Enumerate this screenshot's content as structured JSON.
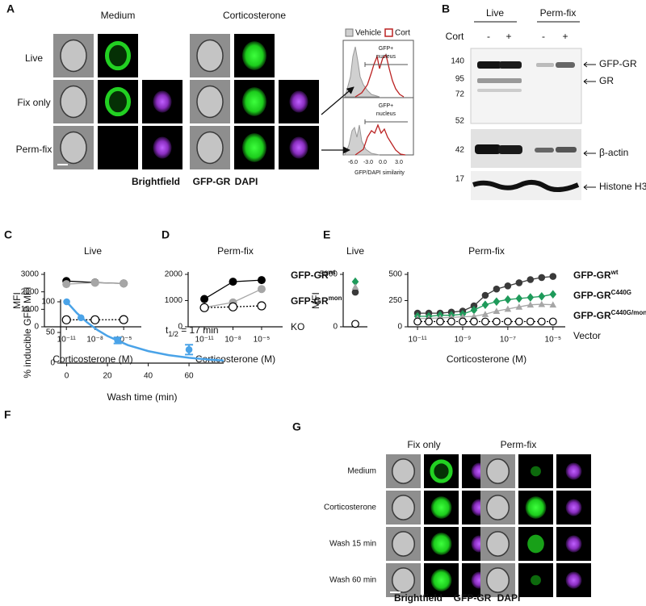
{
  "panels": {
    "A": {
      "label": "A",
      "columns": [
        "Medium",
        "Corticosterone"
      ],
      "rows": [
        "Live",
        "Fix only",
        "Perm-fix"
      ],
      "channels": [
        "Brightfield",
        "GFP-GR",
        "DAPI"
      ],
      "histogram": {
        "legend": [
          "Vehicle",
          "Cort"
        ],
        "gates": [
          [
            "GFP+",
            "nucleus"
          ],
          [
            "GFP+",
            "nucleus"
          ]
        ],
        "xticks": [
          "-6.0",
          "-3.0",
          "0.0",
          "3.0"
        ],
        "xlabel": "GFP/DAPI similarity"
      }
    },
    "B": {
      "label": "B",
      "groups": [
        "Live",
        "Perm-fix"
      ],
      "treatment": "Cort",
      "lanes": [
        "-",
        "+",
        "-",
        "+"
      ],
      "markers": [
        140,
        95,
        72,
        52,
        42,
        17
      ],
      "bands": [
        "GFP-GR",
        "GR",
        "β-actin",
        "Histone H3"
      ]
    },
    "G": {
      "label": "G",
      "columns": [
        "Fix only",
        "Perm-fix"
      ],
      "rows": [
        "Medium",
        "Corticosterone",
        "Wash 15 min",
        "Wash 60 min"
      ],
      "channels": [
        "Brightfield",
        "GFP-GR",
        "DAPI"
      ]
    }
  },
  "chart_data": [
    {
      "panel": "C",
      "type": "line",
      "title": "Live",
      "ylabel": "MFI",
      "xlabel": "Corticosterone (M)",
      "log_x": true,
      "x": [
        1e-11,
        1e-08,
        1e-05
      ],
      "xlim": [
        5e-14,
        0.0007
      ],
      "xticks": [
        {
          "value": 1e-11,
          "label": "10⁻¹¹"
        },
        {
          "value": 1e-08,
          "label": "10⁻⁸"
        },
        {
          "value": 1e-05,
          "label": "10⁻⁵"
        }
      ],
      "ylim": [
        0,
        3000
      ],
      "yticks": [
        0,
        1000,
        2000,
        3000
      ],
      "series": [
        {
          "color": "#000000",
          "marker": "circle",
          "values": [
            2620,
            2530,
            2480
          ]
        },
        {
          "color": "#a6a6a6",
          "marker": "circle",
          "values": [
            2440,
            2520,
            2480
          ]
        },
        {
          "color": "#000000",
          "marker": "open",
          "dash": true,
          "values": [
            400,
            400,
            410
          ]
        }
      ]
    },
    {
      "panel": "D",
      "type": "line",
      "title": "Perm-fix",
      "xlabel": "Corticosterone (M)",
      "log_x": true,
      "x": [
        1e-11,
        1e-08,
        1e-05
      ],
      "xlim": [
        2e-13,
        0.0016
      ],
      "xticks": [
        {
          "value": 1e-11,
          "label": "10⁻¹¹"
        },
        {
          "value": 1e-08,
          "label": "10⁻⁸"
        },
        {
          "value": 1e-05,
          "label": "10⁻⁵"
        }
      ],
      "ylim": [
        0,
        2000
      ],
      "yticks": [
        0,
        1000,
        2000
      ],
      "series": [
        {
          "name": "GFP-GR",
          "name_sup": "wt",
          "color": "#000000",
          "marker": "circle",
          "values": [
            1060,
            1720,
            1780
          ]
        },
        {
          "name": "GFP-GR",
          "name_sup": "mon",
          "color": "#a6a6a6",
          "marker": "circle",
          "values": [
            740,
            930,
            1440
          ]
        },
        {
          "name": "KO",
          "color": "#000000",
          "marker": "open",
          "dash": true,
          "values": [
            730,
            760,
            800
          ]
        }
      ]
    },
    {
      "panel": "E",
      "type": "scatter",
      "title": "Live",
      "ylabel": "MFI",
      "ylim": [
        0,
        5000
      ],
      "yticks": [
        0,
        5000
      ],
      "series": [
        {
          "color": "#3a3a3a",
          "marker": "circle",
          "values": [
            3300
          ]
        },
        {
          "color": "#1e9a5a",
          "marker": "diamond",
          "values": [
            4300
          ]
        },
        {
          "color": "#a6a6a6",
          "marker": "triangle",
          "values": [
            3800
          ]
        },
        {
          "color": "#000000",
          "marker": "open",
          "values": [
            280
          ]
        }
      ]
    },
    {
      "type": "line",
      "title": "Perm-fix",
      "xlabel": "Corticosterone (M)",
      "log_x": true,
      "x": [
        1e-11,
        3.16e-11,
        1e-10,
        3.16e-10,
        1e-09,
        3.16e-09,
        1e-08,
        3.16e-08,
        1e-07,
        3.16e-07,
        1e-06,
        3.16e-06,
        1e-05
      ],
      "xlim": [
        3.7e-12,
        3.5e-05
      ],
      "xticks": [
        {
          "value": 1e-11,
          "label": "10⁻¹¹"
        },
        {
          "value": 1e-09,
          "label": "10⁻⁹"
        },
        {
          "value": 1e-07,
          "label": "10⁻⁷"
        },
        {
          "value": 1e-05,
          "label": "10⁻⁵"
        }
      ],
      "ylim": [
        0,
        500
      ],
      "yticks": [
        0,
        250,
        500
      ],
      "series": [
        {
          "name": "GFP-GR",
          "name_sup": "wt",
          "color": "#3a3a3a",
          "marker": "circle",
          "values": [
            130,
            130,
            130,
            140,
            150,
            200,
            300,
            360,
            390,
            420,
            450,
            470,
            480
          ]
        },
        {
          "name": "GFP-GR",
          "name_sup": "C440G",
          "color": "#1e9a5a",
          "marker": "diamond",
          "values": [
            100,
            100,
            110,
            110,
            120,
            160,
            210,
            240,
            260,
            270,
            280,
            290,
            310
          ]
        },
        {
          "name": "GFP-GR",
          "name_sup": "C440G/mon",
          "color": "#a6a6a6",
          "marker": "triangle",
          "values": [
            80,
            80,
            85,
            90,
            95,
            100,
            120,
            150,
            170,
            190,
            210,
            215,
            210
          ]
        },
        {
          "name": "Vector",
          "color": "#000000",
          "marker": "open",
          "dash": true,
          "values": [
            50,
            50,
            50,
            50,
            50,
            50,
            50,
            50,
            50,
            50,
            50,
            50,
            50
          ]
        }
      ]
    },
    {
      "panel": "F",
      "type": "scatter",
      "xlabel": "Wash time (min)",
      "ylabel": "% inducible GFP MFI",
      "annotation": {
        "text": "t",
        "sub": "1/2",
        "rest": " = 17 min"
      },
      "x": [
        0,
        7,
        25,
        60
      ],
      "xlim": [
        -3,
        77
      ],
      "xticks": [
        0,
        20,
        40,
        60
      ],
      "ylim": [
        0,
        100
      ],
      "yticks": [
        0,
        50,
        100
      ],
      "series": [
        {
          "color": "#4aa3e8",
          "marker": "circle",
          "values": [
            100,
            74,
            37,
            22
          ],
          "errors": [
            null,
            null,
            5,
            8
          ]
        }
      ],
      "fit": {
        "x": [
          0,
          5,
          10,
          15,
          20,
          30,
          40,
          50,
          60,
          70,
          77
        ],
        "values": [
          100,
          81.6,
          66.5,
          54.2,
          44.2,
          29.4,
          19.6,
          13,
          8.7,
          5.8,
          4.3
        ]
      }
    }
  ]
}
